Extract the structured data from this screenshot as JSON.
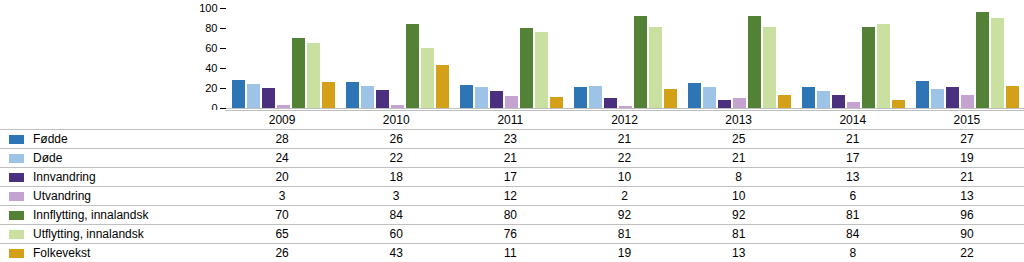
{
  "chart_data": {
    "type": "bar",
    "categories": [
      2009,
      2010,
      2011,
      2012,
      2013,
      2014,
      2015
    ],
    "series": [
      {
        "name": "Fødde",
        "color": "#2e75b6",
        "values": [
          28,
          26,
          23,
          21,
          25,
          21,
          27
        ]
      },
      {
        "name": "Døde",
        "color": "#9dc3e6",
        "values": [
          24,
          22,
          21,
          22,
          21,
          17,
          19
        ]
      },
      {
        "name": "Innvandring",
        "color": "#4b3080",
        "values": [
          20,
          18,
          17,
          10,
          8,
          13,
          21
        ]
      },
      {
        "name": "Utvandring",
        "color": "#c5a3d0",
        "values": [
          3,
          3,
          12,
          2,
          10,
          6,
          13
        ]
      },
      {
        "name": "Innflytting, innalandsk",
        "color": "#538135",
        "values": [
          70,
          84,
          80,
          92,
          92,
          81,
          96
        ]
      },
      {
        "name": "Utflytting, innalandsk",
        "color": "#c9e0a0",
        "values": [
          65,
          60,
          76,
          81,
          81,
          84,
          90
        ]
      },
      {
        "name": "Folkevekst",
        "color": "#d4a017",
        "values": [
          26,
          43,
          11,
          19,
          13,
          8,
          22
        ]
      }
    ],
    "ylim": [
      0,
      100
    ],
    "yticks": [
      0,
      20,
      40,
      60,
      80,
      100
    ]
  }
}
